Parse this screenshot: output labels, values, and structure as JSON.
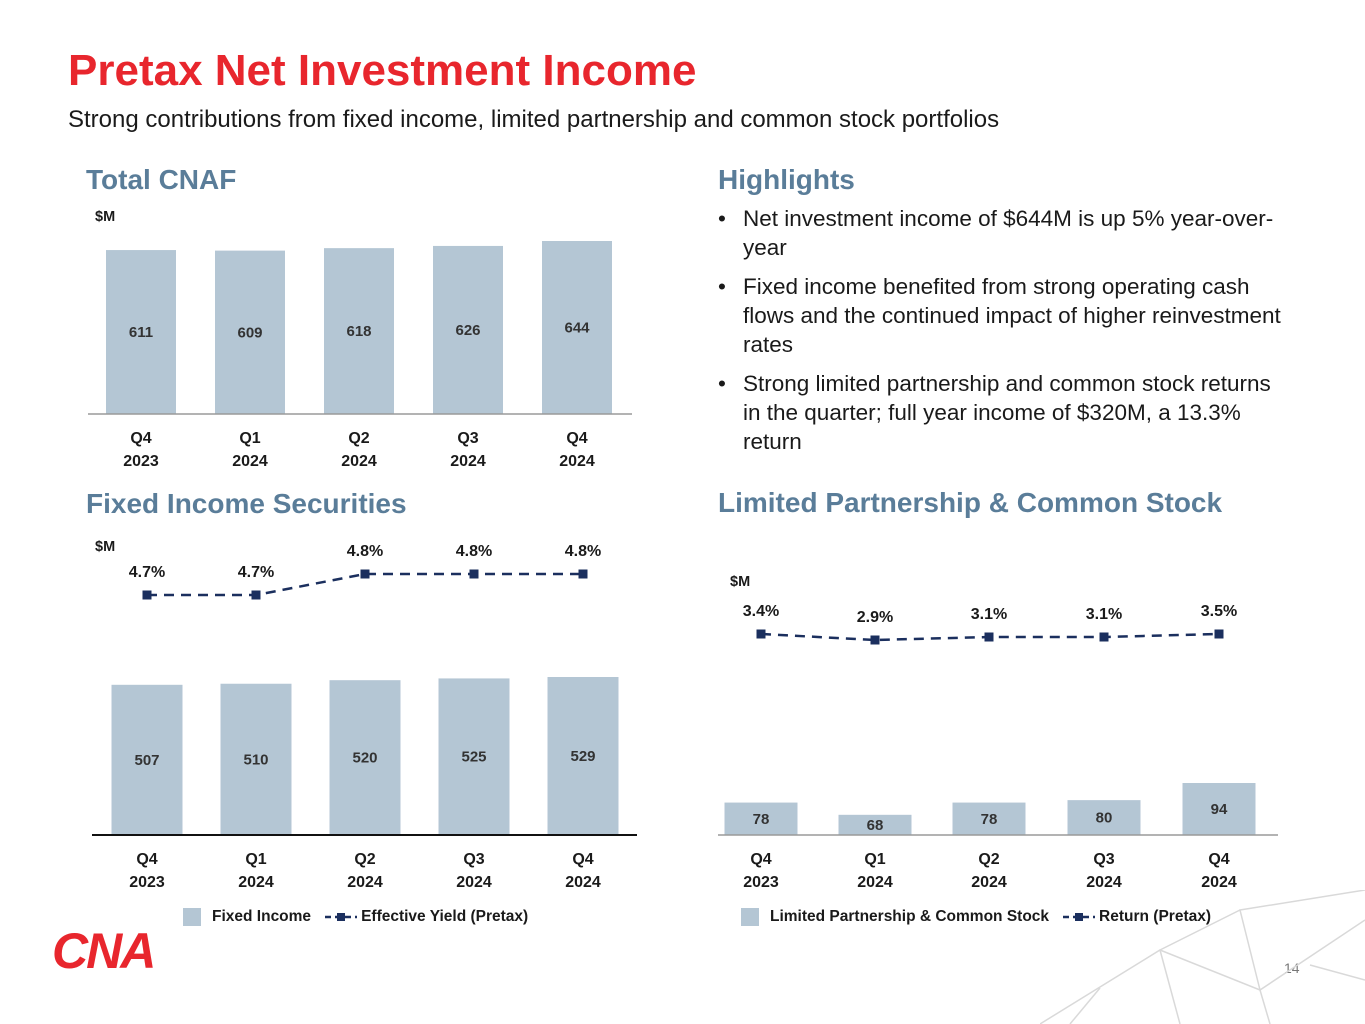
{
  "header": {
    "title": "Pretax Net Investment Income",
    "subtitle": "Strong contributions from fixed income, limited partnership and common stock portfolios"
  },
  "sections": {
    "total_cnaf": "Total CNAF",
    "highlights": "Highlights",
    "fixed_income": "Fixed Income Securities",
    "lp_common": "Limited Partnership & Common Stock"
  },
  "highlights": [
    "Net investment income of $644M is up 5% year-over-year",
    "Fixed income benefited from strong operating cash flows and the continued impact of higher reinvestment rates",
    "Strong limited partnership and common stock returns in the quarter; full year income of $320M, a 13.3% return"
  ],
  "legends": {
    "fixed_bar": "Fixed Income",
    "fixed_line": "Effective Yield (Pretax)",
    "lp_bar": "Limited Partnership & Common Stock",
    "lp_line": "Return (Pretax)"
  },
  "footer": {
    "page_number": "14",
    "logo_text": "CNA"
  },
  "colors": {
    "title": "#e8262d",
    "section": "#5a7d99",
    "bar": "#b4c6d4",
    "line": "#1b2f5e",
    "axis": "#333333"
  },
  "chart_data": [
    {
      "id": "total",
      "type": "bar",
      "unit_label": "$M",
      "categories": [
        [
          "Q4",
          "2023"
        ],
        [
          "Q1",
          "2024"
        ],
        [
          "Q2",
          "2024"
        ],
        [
          "Q3",
          "2024"
        ],
        [
          "Q4",
          "2024"
        ]
      ],
      "series": [
        {
          "values": [
            611,
            609,
            618,
            626,
            644
          ]
        }
      ]
    },
    {
      "id": "fixed",
      "type": "bar",
      "unit_label": "$M",
      "categories": [
        [
          "Q4",
          "2023"
        ],
        [
          "Q1",
          "2024"
        ],
        [
          "Q2",
          "2024"
        ],
        [
          "Q3",
          "2024"
        ],
        [
          "Q4",
          "2024"
        ]
      ],
      "series": [
        {
          "name": "Fixed Income",
          "type": "bar",
          "values": [
            507,
            510,
            520,
            525,
            529
          ]
        },
        {
          "name": "Effective Yield (Pretax)",
          "type": "line",
          "values": [
            4.7,
            4.7,
            4.8,
            4.8,
            4.8
          ],
          "labels": [
            "4.7%",
            "4.7%",
            "4.8%",
            "4.8%",
            "4.8%"
          ]
        }
      ]
    },
    {
      "id": "lp",
      "type": "bar",
      "unit_label": "$M",
      "categories": [
        [
          "Q4",
          "2023"
        ],
        [
          "Q1",
          "2024"
        ],
        [
          "Q2",
          "2024"
        ],
        [
          "Q3",
          "2024"
        ],
        [
          "Q4",
          "2024"
        ]
      ],
      "series": [
        {
          "name": "Limited Partnership & Common Stock",
          "type": "bar",
          "values": [
            78,
            68,
            78,
            80,
            94
          ]
        },
        {
          "name": "Return (Pretax)",
          "type": "line",
          "values": [
            3.4,
            2.9,
            3.1,
            3.1,
            3.5
          ],
          "labels": [
            "3.4%",
            "2.9%",
            "3.1%",
            "3.1%",
            "3.5%"
          ]
        }
      ]
    }
  ]
}
